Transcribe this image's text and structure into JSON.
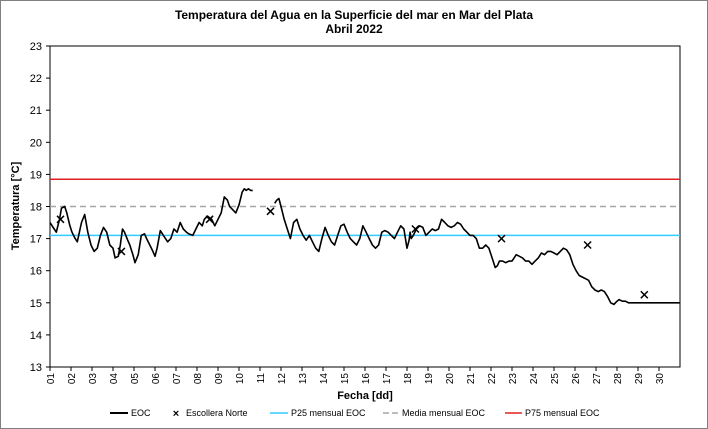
{
  "chart_data": {
    "type": "line",
    "title": "Temperatura del Agua en la Superficie del mar en Mar del Plata",
    "subtitle": "Abril 2022",
    "xlabel": "Fecha [dd]",
    "ylabel": "Temperatura [°C]",
    "ylim": [
      13,
      23
    ],
    "xlim": [
      1,
      31
    ],
    "yticks": [
      "13",
      "14",
      "15",
      "16",
      "17",
      "18",
      "19",
      "20",
      "21",
      "22",
      "23"
    ],
    "xticks": [
      "01",
      "02",
      "03",
      "04",
      "05",
      "06",
      "07",
      "08",
      "09",
      "10",
      "11",
      "12",
      "13",
      "14",
      "15",
      "16",
      "17",
      "18",
      "19",
      "20",
      "21",
      "22",
      "23",
      "24",
      "25",
      "26",
      "27",
      "28",
      "29",
      "30"
    ],
    "grid": false,
    "legend_position": "bottom",
    "colors": {
      "eoc": "#000000",
      "escollera": "#000000",
      "p25": "#33ccff",
      "media": "#a6a6a6",
      "p75": "#e02020"
    },
    "series": [
      {
        "name": "EOC",
        "segments": [
          {
            "x": [
              1.0,
              1.1,
              1.2,
              1.3,
              1.45,
              1.55,
              1.7,
              1.8,
              1.95,
              2.05,
              2.2,
              2.3,
              2.5,
              2.65,
              2.8,
              2.95,
              3.1,
              3.25,
              3.4,
              3.55,
              3.7,
              3.85,
              4.0,
              4.1,
              4.25,
              4.35,
              4.45,
              4.55,
              4.7,
              4.8,
              4.95,
              5.05,
              5.2,
              5.35,
              5.5,
              5.6,
              5.75,
              5.9,
              6.0,
              6.1,
              6.25,
              6.4,
              6.6,
              6.75,
              6.9,
              7.05,
              7.2,
              7.35,
              7.5,
              7.6,
              7.8,
              7.95,
              8.1,
              8.25,
              8.35,
              8.5,
              8.6,
              8.7,
              8.85,
              9.0,
              9.15,
              9.3,
              9.45,
              9.55,
              9.7,
              9.85,
              10.0,
              10.15,
              10.25,
              10.35,
              10.45,
              10.55,
              10.65
            ],
            "y": [
              17.5,
              17.4,
              17.3,
              17.2,
              17.6,
              17.95,
              18.0,
              17.8,
              17.4,
              17.2,
              17.0,
              16.9,
              17.5,
              17.75,
              17.2,
              16.8,
              16.6,
              16.7,
              17.1,
              17.35,
              17.2,
              16.8,
              16.7,
              16.4,
              16.45,
              16.8,
              17.3,
              17.2,
              16.95,
              16.8,
              16.5,
              16.25,
              16.5,
              17.1,
              17.15,
              17.0,
              16.8,
              16.6,
              16.45,
              16.7,
              17.25,
              17.1,
              16.9,
              17.0,
              17.3,
              17.2,
              17.5,
              17.3,
              17.2,
              17.15,
              17.1,
              17.3,
              17.5,
              17.4,
              17.6,
              17.7,
              17.65,
              17.6,
              17.4,
              17.6,
              17.8,
              18.3,
              18.2,
              18.0,
              17.9,
              17.8,
              18.05,
              18.45,
              18.55,
              18.5,
              18.55,
              18.5,
              18.5
            ]
          },
          {
            "x": [
              11.7,
              11.8,
              11.9,
              12.0,
              12.15,
              12.3,
              12.45,
              12.6,
              12.75,
              12.9,
              13.05,
              13.2,
              13.35,
              13.5,
              13.65,
              13.8,
              13.95,
              14.1,
              14.25,
              14.4,
              14.55,
              14.7,
              14.85,
              15.0,
              15.15,
              15.3,
              15.45,
              15.6,
              15.75,
              15.9,
              16.05,
              16.2,
              16.35,
              16.5,
              16.65,
              16.8,
              16.95,
              17.1,
              17.25,
              17.4,
              17.55,
              17.7,
              17.85,
              18.0,
              18.1,
              18.15,
              18.2,
              18.3,
              18.45,
              18.6,
              18.75,
              18.9,
              19.05,
              19.2,
              19.35,
              19.5,
              19.65,
              19.8,
              19.95,
              20.1,
              20.25,
              20.4,
              20.55,
              20.7,
              20.85,
              21.0,
              21.15,
              21.3,
              21.45,
              21.6,
              21.75,
              21.9,
              22.05,
              22.2,
              22.3,
              22.4,
              22.55,
              22.7,
              22.85,
              23.0,
              23.1,
              23.2,
              23.35,
              23.5,
              23.65,
              23.8,
              23.95,
              24.1,
              24.25,
              24.4,
              24.55,
              24.7,
              24.85,
              25.0,
              25.15,
              25.3,
              25.45,
              25.6,
              25.75,
              25.9,
              26.05,
              26.2,
              26.35,
              26.5,
              26.65,
              26.8,
              26.95,
              27.1,
              27.25,
              27.4,
              27.55,
              27.7,
              27.85,
              28.0,
              28.1,
              28.25,
              28.4,
              28.55,
              28.7,
              28.85,
              29.0,
              29.15,
              29.3,
              29.45,
              29.6,
              29.75,
              29.9,
              30.05,
              30.2,
              30.35,
              30.5,
              30.65,
              30.8,
              31.0
            ],
            "y": [
              18.1,
              18.2,
              18.25,
              18.0,
              17.6,
              17.3,
              17.0,
              17.5,
              17.6,
              17.3,
              17.1,
              16.95,
              17.1,
              16.9,
              16.7,
              16.6,
              17.0,
              17.35,
              17.1,
              16.9,
              16.8,
              17.1,
              17.4,
              17.45,
              17.2,
              17.0,
              16.9,
              16.8,
              17.0,
              17.4,
              17.2,
              17.0,
              16.8,
              16.7,
              16.8,
              17.2,
              17.25,
              17.2,
              17.1,
              17.0,
              17.2,
              17.4,
              17.3,
              16.7,
              16.95,
              17.2,
              17.0,
              17.1,
              17.3,
              17.4,
              17.35,
              17.1,
              17.2,
              17.3,
              17.25,
              17.3,
              17.6,
              17.5,
              17.4,
              17.35,
              17.4,
              17.5,
              17.45,
              17.3,
              17.2,
              17.1,
              17.1,
              17.0,
              16.7,
              16.7,
              16.8,
              16.7,
              16.4,
              16.1,
              16.15,
              16.3,
              16.3,
              16.25,
              16.3,
              16.3,
              16.4,
              16.5,
              16.45,
              16.4,
              16.3,
              16.3,
              16.2,
              16.3,
              16.4,
              16.55,
              16.5,
              16.6,
              16.6,
              16.55,
              16.5,
              16.6,
              16.7,
              16.65,
              16.5,
              16.2,
              16.0,
              15.85,
              15.8,
              15.75,
              15.7,
              15.5,
              15.4,
              15.35,
              15.4,
              15.35,
              15.2,
              15.0,
              14.95,
              15.05,
              15.1,
              15.05,
              15.05,
              15.0,
              15.0,
              15.0,
              15.0,
              15.0,
              15.0,
              15.0,
              15.0,
              15.0,
              15.0,
              15.0,
              15.0,
              15.0,
              15.0,
              15.0,
              15.0,
              15.0
            ]
          }
        ]
      },
      {
        "name": "Escollera Norte",
        "marker": "x",
        "x": [
          1.5,
          4.4,
          8.6,
          11.5,
          18.4,
          22.5,
          26.6,
          29.3
        ],
        "y": [
          17.6,
          16.6,
          17.6,
          17.85,
          17.3,
          17.0,
          16.8,
          15.25
        ]
      },
      {
        "name": "P25 mensual EOC",
        "y": 17.1
      },
      {
        "name": "Media mensual EOC",
        "y": 18.0
      },
      {
        "name": "P75 mensual EOC",
        "y": 18.85
      }
    ]
  }
}
